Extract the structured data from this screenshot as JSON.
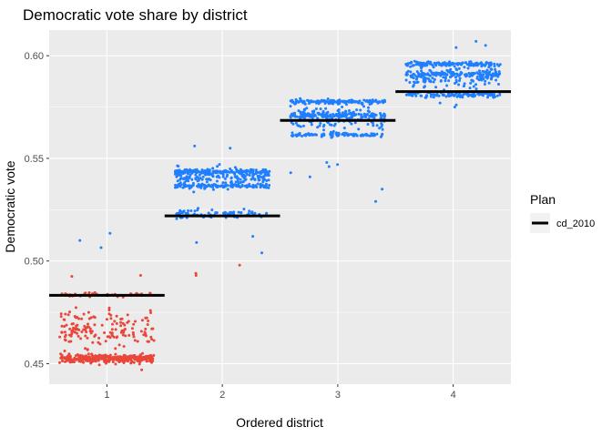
{
  "chart_data": {
    "type": "scatter",
    "title": "Democratic vote share by district",
    "xlabel": "Ordered district",
    "ylabel": "Democratic vote",
    "categories": [
      "1",
      "2",
      "3",
      "4"
    ],
    "ylim": [
      0.44,
      0.6125
    ],
    "yticks": [
      0.45,
      0.5,
      0.55,
      0.6
    ],
    "ytick_labels": [
      "0.45",
      "0.50",
      "0.55",
      "0.60"
    ],
    "grid": true,
    "legend": {
      "title": "Plan",
      "position": "right",
      "entries": [
        "cd_2010"
      ]
    },
    "colors": {
      "panel": "#ebebeb",
      "grid_major": "#ffffff",
      "dem_majority": "#1f7fff",
      "rep_majority": "#e8473a",
      "plan_line": "#000000"
    },
    "plan_series": {
      "name": "cd_2010",
      "values": [
        0.4833,
        0.522,
        0.5685,
        0.5825
      ]
    },
    "simulated_clusters": [
      {
        "district": "1",
        "bands": [
          {
            "center": 0.4525,
            "spread": 0.0025,
            "weight": 0.62
          },
          {
            "center": 0.4835,
            "spread": 0.0012,
            "weight": 0.08
          },
          {
            "center": 0.466,
            "spread": 0.011,
            "weight": 0.3
          }
        ],
        "outliers": [
          0.5135,
          0.5065,
          0.51,
          0.493,
          0.4925,
          0.447
        ]
      },
      {
        "district": "2",
        "bands": [
          {
            "center": 0.5435,
            "spread": 0.0012,
            "weight": 0.3
          },
          {
            "center": 0.5365,
            "spread": 0.0012,
            "weight": 0.2
          },
          {
            "center": 0.541,
            "spread": 0.0055,
            "weight": 0.35
          },
          {
            "center": 0.523,
            "spread": 0.0025,
            "weight": 0.15
          }
        ],
        "outliers": [
          0.556,
          0.555,
          0.504,
          0.498,
          0.494,
          0.493,
          0.509,
          0.512
        ]
      },
      {
        "district": "3",
        "bands": [
          {
            "center": 0.5775,
            "spread": 0.0012,
            "weight": 0.3
          },
          {
            "center": 0.571,
            "spread": 0.0012,
            "weight": 0.18
          },
          {
            "center": 0.5615,
            "spread": 0.0012,
            "weight": 0.18
          },
          {
            "center": 0.57,
            "spread": 0.006,
            "weight": 0.34
          }
        ],
        "outliers": [
          0.529,
          0.535,
          0.541,
          0.543,
          0.546,
          0.547,
          0.548
        ]
      },
      {
        "district": "4",
        "bands": [
          {
            "center": 0.596,
            "spread": 0.0012,
            "weight": 0.28
          },
          {
            "center": 0.591,
            "spread": 0.0012,
            "weight": 0.2
          },
          {
            "center": 0.581,
            "spread": 0.0015,
            "weight": 0.22
          },
          {
            "center": 0.59,
            "spread": 0.006,
            "weight": 0.3
          }
        ],
        "outliers": [
          0.607,
          0.605,
          0.604,
          0.576,
          0.575,
          0.577
        ]
      }
    ]
  }
}
